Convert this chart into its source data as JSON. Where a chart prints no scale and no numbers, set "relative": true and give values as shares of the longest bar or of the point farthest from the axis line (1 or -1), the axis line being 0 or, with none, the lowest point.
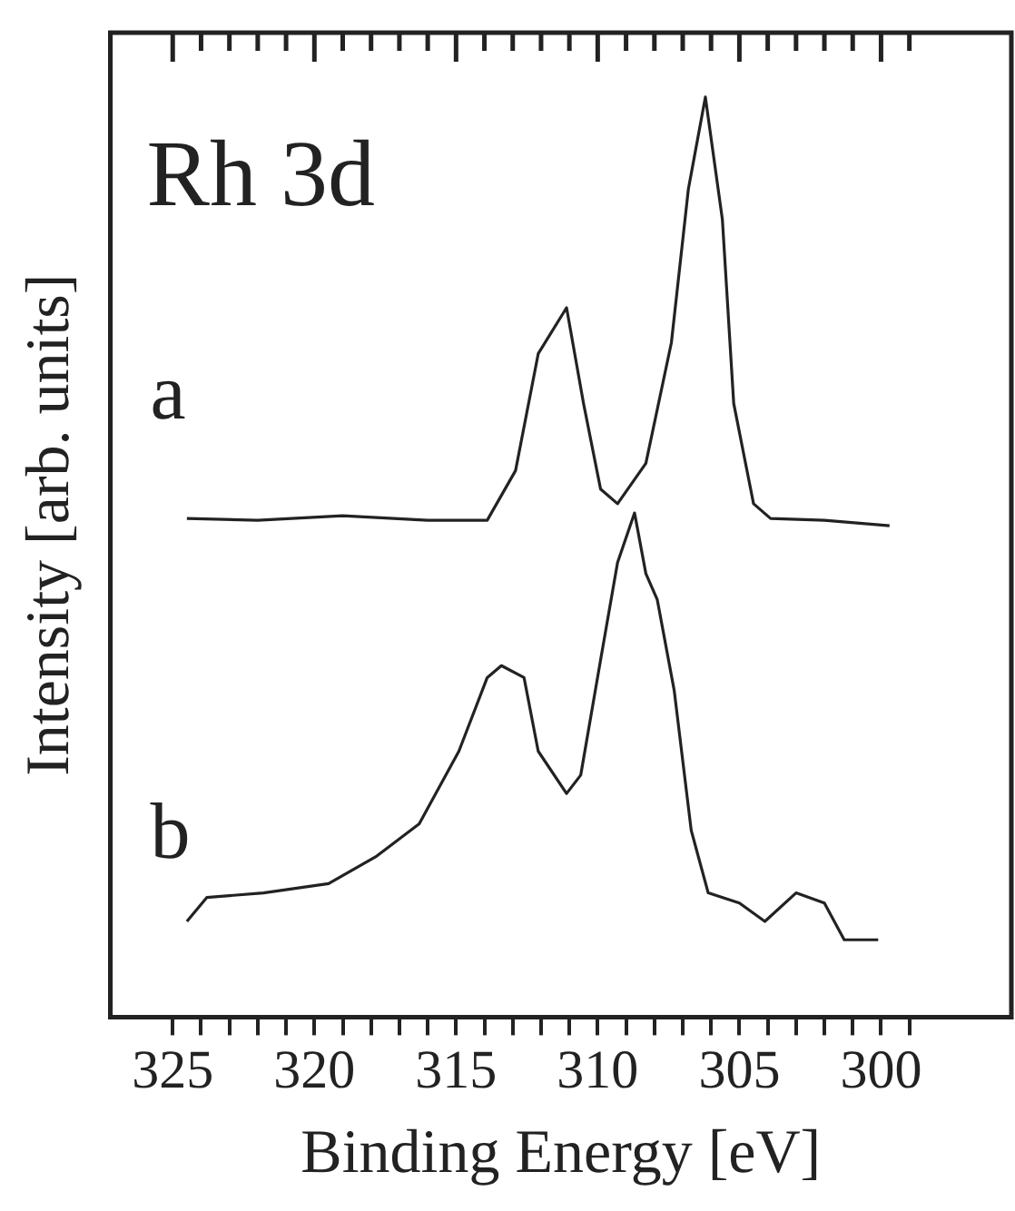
{
  "chart_data": {
    "type": "line",
    "relative": true,
    "xlabel": "Binding Energy [eV]",
    "ylabel": "Intensity [arb. units]",
    "annotations": [
      "Rh 3d"
    ],
    "legend": false,
    "grid": false,
    "xlim": [
      327.2,
      295.4
    ],
    "xticks": [
      325,
      {
        "value": 324,
        "label": null
      },
      {
        "value": 323,
        "label": null
      },
      {
        "value": 322,
        "label": null
      },
      {
        "value": 321,
        "label": null
      },
      320,
      {
        "value": 319,
        "label": null
      },
      {
        "value": 318,
        "label": null
      },
      {
        "value": 317,
        "label": null
      },
      {
        "value": 316,
        "label": null
      },
      315,
      {
        "value": 314,
        "label": null
      },
      {
        "value": 313,
        "label": null
      },
      {
        "value": 312,
        "label": null
      },
      {
        "value": 311,
        "label": null
      },
      310,
      {
        "value": 309,
        "label": null
      },
      {
        "value": 308,
        "label": null
      },
      {
        "value": 307,
        "label": null
      },
      {
        "value": 306,
        "label": null
      },
      305,
      {
        "value": 304,
        "label": null
      },
      {
        "value": 303,
        "label": null
      },
      {
        "value": 302,
        "label": null
      },
      {
        "value": 301,
        "label": null
      },
      300,
      {
        "value": 299,
        "label": null
      }
    ],
    "series": [
      {
        "name": "a",
        "color": "#222222",
        "x": [
          324.5,
          322,
          319,
          316,
          313.9,
          312.9,
          312.1,
          311.1,
          310.5,
          309.9,
          309.3,
          308.3,
          307.4,
          306.8,
          306.2,
          305.6,
          305.2,
          304.5,
          303.9,
          302,
          299.7
        ],
        "values": [
          0.542,
          0.54,
          0.545,
          0.54,
          0.54,
          0.594,
          0.721,
          0.771,
          0.667,
          0.574,
          0.558,
          0.602,
          0.733,
          0.9,
          1.0,
          0.867,
          0.667,
          0.558,
          0.542,
          0.54,
          0.534
        ]
      },
      {
        "name": "b",
        "color": "#222222",
        "x": [
          324.5,
          323.8,
          321.8,
          319.5,
          317.8,
          316.3,
          314.9,
          313.9,
          313.4,
          312.6,
          312.1,
          311.1,
          310.6,
          309.9,
          309.3,
          308.7,
          308.3,
          307.9,
          307.3,
          306.7,
          306.1,
          305.0,
          304.1,
          303.0,
          302.0,
          301.3,
          300.1
        ],
        "values": [
          0.104,
          0.13,
          0.135,
          0.145,
          0.175,
          0.21,
          0.289,
          0.369,
          0.382,
          0.369,
          0.289,
          0.243,
          0.263,
          0.388,
          0.494,
          0.548,
          0.482,
          0.454,
          0.355,
          0.203,
          0.135,
          0.124,
          0.104,
          0.135,
          0.124,
          0.084,
          0.084
        ]
      }
    ]
  }
}
